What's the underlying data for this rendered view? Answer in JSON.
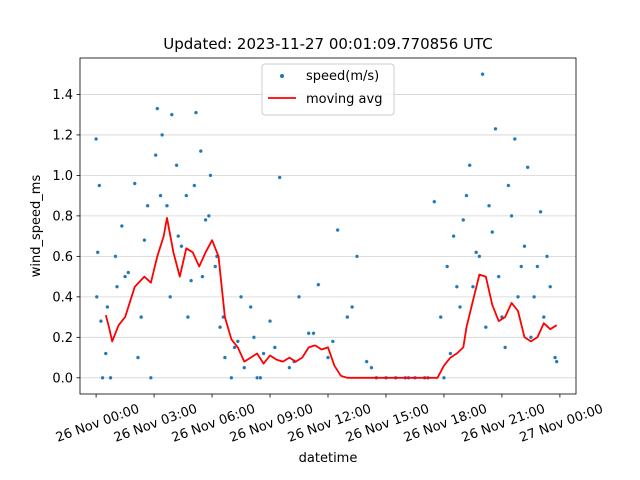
{
  "chart_data": {
    "type": "scatter",
    "title": "Updated: 2023-11-27 00:01:09.770856 UTC",
    "xlabel": "datetime",
    "ylabel": "wind_speed_ms",
    "x_unit": "datetime",
    "xlim": [
      "2023-11-25T23:10",
      "2023-11-27T00:50"
    ],
    "ylim": [
      -0.08,
      1.58
    ],
    "xticks": [
      "2023-11-26T00:00",
      "2023-11-26T03:00",
      "2023-11-26T06:00",
      "2023-11-26T09:00",
      "2023-11-26T12:00",
      "2023-11-26T15:00",
      "2023-11-26T18:00",
      "2023-11-26T21:00",
      "2023-11-27T00:00"
    ],
    "xtick_labels": [
      "26 Nov 00:00",
      "26 Nov 03:00",
      "26 Nov 06:00",
      "26 Nov 09:00",
      "26 Nov 12:00",
      "26 Nov 15:00",
      "26 Nov 18:00",
      "26 Nov 21:00",
      "27 Nov 00:00"
    ],
    "yticks": [
      0.0,
      0.2,
      0.4,
      0.6,
      0.8,
      1.0,
      1.2,
      1.4
    ],
    "ytick_labels": [
      "0.0",
      "0.2",
      "0.4",
      "0.6",
      "0.8",
      "1.0",
      "1.2",
      "1.4"
    ],
    "grid": "horizontal",
    "legend_position": "top-center",
    "colors": {
      "scatter": "#1f77b4",
      "line": "#ff0000"
    },
    "series": [
      {
        "name": "speed(m/s)",
        "kind": "scatter",
        "x": [
          "2023-11-26T00:00",
          "2023-11-26T00:05",
          "2023-11-26T00:10",
          "2023-11-26T00:15",
          "2023-11-26T00:20",
          "2023-11-26T00:35",
          "2023-11-26T00:45",
          "2023-11-26T01:05",
          "2023-11-26T01:20",
          "2023-11-26T01:40",
          "2023-11-26T02:00",
          "2023-11-26T02:10",
          "2023-11-26T02:30",
          "2023-11-26T02:50",
          "2023-11-26T03:10",
          "2023-11-26T03:25",
          "2023-11-26T03:40",
          "2023-11-26T03:55",
          "2023-11-26T04:10",
          "2023-11-26T04:25",
          "2023-11-26T04:40",
          "2023-11-26T04:55",
          "2023-11-26T05:10",
          "2023-11-26T05:25",
          "2023-11-26T05:40",
          "2023-11-26T05:55",
          "2023-11-26T06:10",
          "2023-11-26T06:25",
          "2023-11-26T06:40",
          "2023-11-26T07:00",
          "2023-11-26T07:20",
          "2023-11-26T07:40",
          "2023-11-26T08:00",
          "2023-11-26T08:20",
          "2023-11-26T08:40",
          "2023-11-26T09:00",
          "2023-11-26T09:30",
          "2023-11-26T10:00",
          "2023-11-26T10:30",
          "2023-11-26T11:00",
          "2023-11-26T11:30",
          "2023-11-26T12:00",
          "2023-11-26T12:30",
          "2023-11-26T13:00",
          "2023-11-26T13:30",
          "2023-11-26T14:00",
          "2023-11-26T14:30",
          "2023-11-26T15:00",
          "2023-11-26T15:30",
          "2023-11-26T16:00",
          "2023-11-26T16:30",
          "2023-11-26T17:00",
          "2023-11-26T17:30",
          "2023-11-26T18:00",
          "2023-11-26T18:20",
          "2023-11-26T18:40",
          "2023-11-26T19:00",
          "2023-11-26T19:20",
          "2023-11-26T19:40",
          "2023-11-26T20:00",
          "2023-11-26T20:20",
          "2023-11-26T20:40",
          "2023-11-26T21:00",
          "2023-11-26T21:20",
          "2023-11-26T21:40",
          "2023-11-26T22:00",
          "2023-11-26T22:20",
          "2023-11-26T22:40",
          "2023-11-26T23:00",
          "2023-11-26T23:20",
          "2023-11-26T23:50",
          "2023-11-26T00:02",
          "2023-11-26T00:30",
          "2023-11-26T01:00",
          "2023-11-26T01:30",
          "2023-11-26T02:20",
          "2023-11-26T02:40",
          "2023-11-26T03:05",
          "2023-11-26T03:20",
          "2023-11-26T03:50",
          "2023-11-26T04:15",
          "2023-11-26T04:45",
          "2023-11-26T05:05",
          "2023-11-26T05:30",
          "2023-11-26T05:50",
          "2023-11-26T06:15",
          "2023-11-26T06:35",
          "2023-11-26T07:10",
          "2023-11-26T07:30",
          "2023-11-26T08:10",
          "2023-11-26T08:30",
          "2023-11-26T09:15",
          "2023-11-26T10:15",
          "2023-11-26T11:15",
          "2023-11-26T12:15",
          "2023-11-26T13:15",
          "2023-11-26T14:15",
          "2023-11-26T16:10",
          "2023-11-26T17:10",
          "2023-11-26T17:50",
          "2023-11-26T18:10",
          "2023-11-26T18:30",
          "2023-11-26T18:50",
          "2023-11-26T19:10",
          "2023-11-26T19:30",
          "2023-11-26T19:50",
          "2023-11-26T20:10",
          "2023-11-26T20:30",
          "2023-11-26T20:50",
          "2023-11-26T21:10",
          "2023-11-26T21:30",
          "2023-11-26T21:50",
          "2023-11-26T22:10",
          "2023-11-26T22:30",
          "2023-11-26T22:50",
          "2023-11-26T23:10",
          "2023-11-26T23:30",
          "2023-11-26T23:45"
        ],
        "y": [
          1.18,
          0.62,
          0.95,
          0.28,
          0.0,
          0.35,
          0.0,
          0.45,
          0.75,
          0.52,
          0.96,
          0.1,
          0.68,
          0.0,
          1.33,
          1.2,
          0.85,
          1.3,
          1.05,
          0.65,
          0.9,
          0.48,
          1.31,
          1.12,
          0.78,
          1.0,
          0.55,
          0.25,
          0.1,
          0.0,
          0.18,
          0.05,
          0.35,
          0.0,
          0.12,
          0.28,
          0.99,
          0.05,
          0.4,
          0.22,
          0.46,
          0.1,
          0.73,
          0.3,
          0.6,
          0.08,
          0.0,
          0.0,
          0.0,
          0.0,
          0.0,
          0.0,
          0.87,
          0.0,
          0.12,
          0.45,
          0.78,
          1.05,
          0.62,
          1.5,
          0.85,
          1.23,
          0.3,
          0.95,
          1.18,
          0.55,
          1.04,
          0.4,
          0.82,
          0.6,
          0.08,
          0.4,
          0.12,
          0.6,
          0.5,
          0.3,
          0.85,
          1.1,
          0.9,
          0.4,
          0.7,
          0.3,
          0.95,
          0.5,
          0.8,
          0.6,
          0.3,
          0.15,
          0.4,
          0.2,
          0.0,
          0.15,
          0.08,
          0.22,
          0.18,
          0.35,
          0.05,
          0.0,
          0.0,
          0.3,
          0.55,
          0.7,
          0.35,
          0.9,
          0.45,
          0.6,
          0.25,
          0.72,
          0.5,
          0.15,
          0.8,
          0.4,
          0.65,
          0.2,
          0.55,
          0.3,
          0.45,
          0.1
        ]
      },
      {
        "name": "moving avg",
        "kind": "line",
        "x": [
          "2023-11-26T00:30",
          "2023-11-26T00:40",
          "2023-11-26T00:50",
          "2023-11-26T01:10",
          "2023-11-26T01:30",
          "2023-11-26T02:00",
          "2023-11-26T02:30",
          "2023-11-26T02:50",
          "2023-11-26T03:10",
          "2023-11-26T03:30",
          "2023-11-26T03:40",
          "2023-11-26T04:00",
          "2023-11-26T04:20",
          "2023-11-26T04:40",
          "2023-11-26T05:00",
          "2023-11-26T05:20",
          "2023-11-26T05:40",
          "2023-11-26T06:00",
          "2023-11-26T06:20",
          "2023-11-26T06:40",
          "2023-11-26T07:00",
          "2023-11-26T07:20",
          "2023-11-26T07:40",
          "2023-11-26T08:00",
          "2023-11-26T08:20",
          "2023-11-26T08:40",
          "2023-11-26T09:00",
          "2023-11-26T09:20",
          "2023-11-26T09:40",
          "2023-11-26T10:00",
          "2023-11-26T10:20",
          "2023-11-26T10:40",
          "2023-11-26T11:00",
          "2023-11-26T11:20",
          "2023-11-26T11:40",
          "2023-11-26T12:00",
          "2023-11-26T12:20",
          "2023-11-26T12:40",
          "2023-11-26T13:00",
          "2023-11-26T13:20",
          "2023-11-26T13:40",
          "2023-11-26T14:00",
          "2023-11-26T14:20",
          "2023-11-26T15:00",
          "2023-11-26T16:00",
          "2023-11-26T17:00",
          "2023-11-26T17:40",
          "2023-11-26T18:00",
          "2023-11-26T18:20",
          "2023-11-26T18:40",
          "2023-11-26T19:00",
          "2023-11-26T19:10",
          "2023-11-26T19:30",
          "2023-11-26T19:50",
          "2023-11-26T20:10",
          "2023-11-26T20:30",
          "2023-11-26T20:50",
          "2023-11-26T21:10",
          "2023-11-26T21:30",
          "2023-11-26T21:50",
          "2023-11-26T22:10",
          "2023-11-26T22:30",
          "2023-11-26T22:50",
          "2023-11-26T23:10",
          "2023-11-26T23:30",
          "2023-11-26T23:50"
        ],
        "y": [
          0.31,
          0.25,
          0.18,
          0.26,
          0.3,
          0.45,
          0.5,
          0.47,
          0.6,
          0.7,
          0.79,
          0.62,
          0.5,
          0.64,
          0.62,
          0.55,
          0.62,
          0.68,
          0.6,
          0.3,
          0.19,
          0.15,
          0.08,
          0.1,
          0.12,
          0.07,
          0.11,
          0.09,
          0.08,
          0.1,
          0.08,
          0.1,
          0.15,
          0.16,
          0.14,
          0.15,
          0.06,
          0.01,
          0.0,
          0.0,
          0.0,
          0.0,
          0.0,
          0.0,
          0.0,
          0.0,
          0.0,
          0.06,
          0.1,
          0.12,
          0.15,
          0.25,
          0.38,
          0.51,
          0.5,
          0.36,
          0.28,
          0.3,
          0.37,
          0.33,
          0.2,
          0.18,
          0.2,
          0.27,
          0.24,
          0.26
        ]
      }
    ]
  }
}
